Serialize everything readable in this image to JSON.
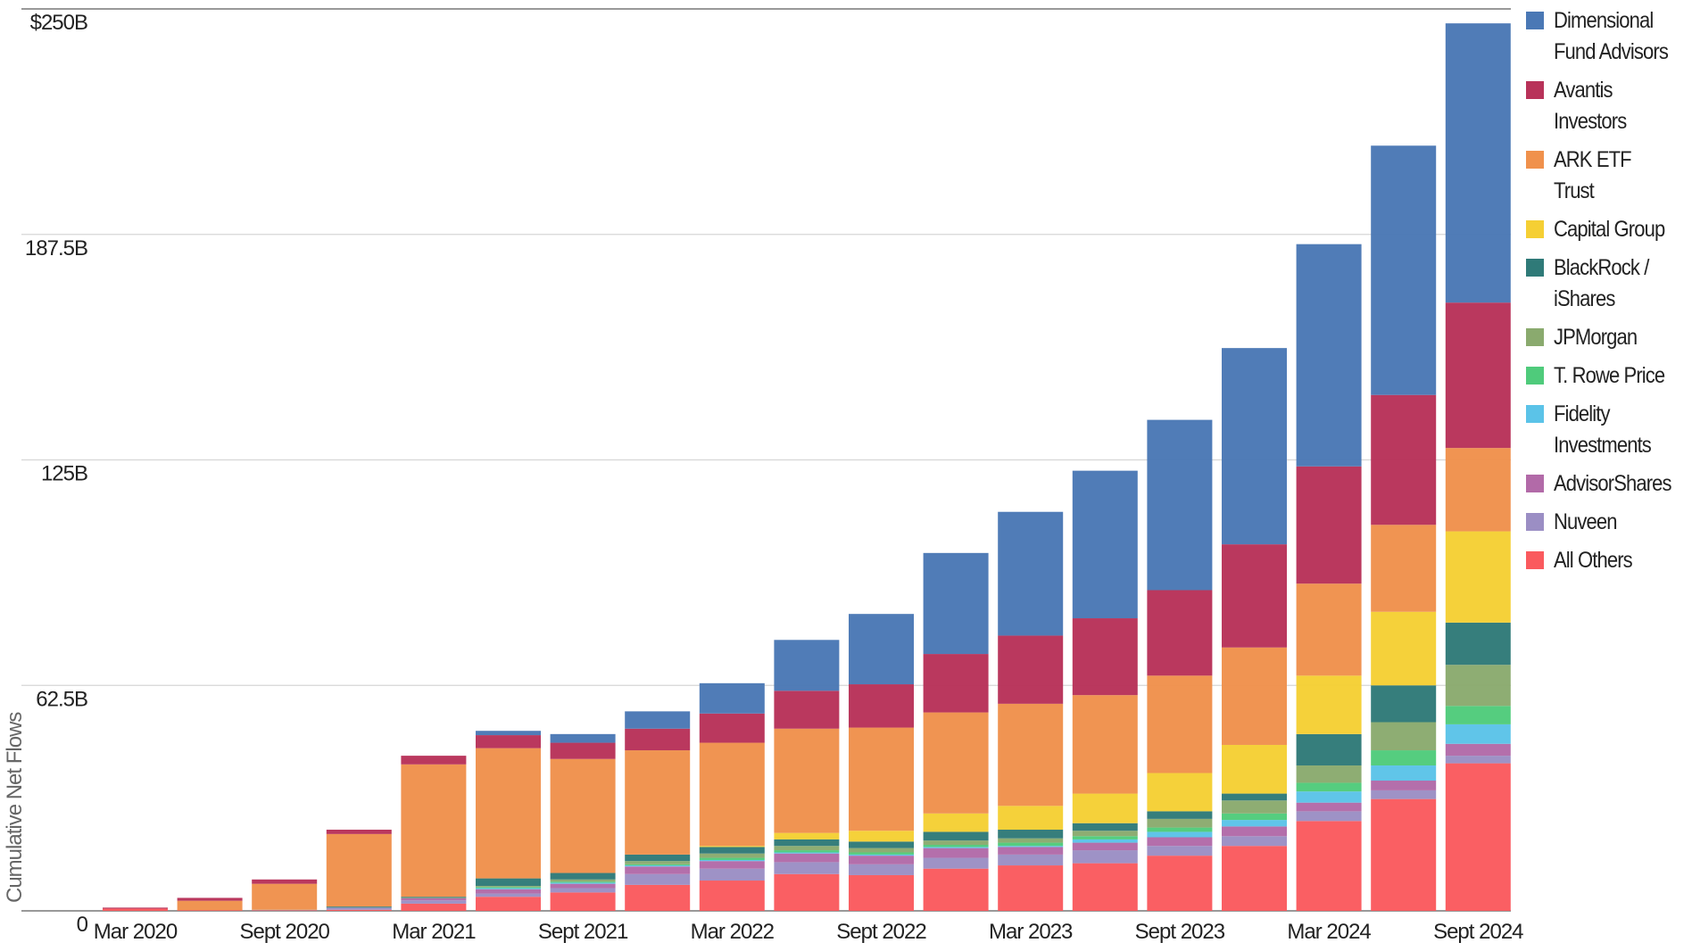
{
  "chart_data": {
    "type": "bar",
    "stacked": true,
    "title": "",
    "xlabel": "",
    "ylabel": "Cumulative Net Flows",
    "ylim": [
      0,
      250
    ],
    "yunit": "B",
    "yticks": [
      0,
      62.5,
      125,
      187.5,
      250
    ],
    "ytick_labels": [
      "0",
      "62.5B",
      "125B",
      "187.5B",
      "$250B"
    ],
    "grid": true,
    "legend_position": "right",
    "categories": [
      "Mar 2020",
      "Jun 2020",
      "Sept 2020",
      "Dec 2020",
      "Mar 2021",
      "Jun 2021",
      "Sept 2021",
      "Dec 2021",
      "Mar 2022",
      "Jun 2022",
      "Sept 2022",
      "Dec 2022",
      "Mar 2023",
      "Jun 2023",
      "Sept 2023",
      "Dec 2023",
      "Mar 2024",
      "Jun 2024",
      "Sept 2024"
    ],
    "xtick_labels": [
      "Mar 2020",
      "",
      "Sept 2020",
      "",
      "Mar 2021",
      "",
      "Sept 2021",
      "",
      "Mar 2022",
      "",
      "Sept 2022",
      "",
      "Mar 2023",
      "",
      "Sept 2023",
      "",
      "Mar 2024",
      "",
      "Sept 2024"
    ],
    "series": [
      {
        "name": "All Others",
        "color": "#fa5a5e",
        "values": [
          0.6,
          0.2,
          0.2,
          0.3,
          2.0,
          3.9,
          5.1,
          7.2,
          8.4,
          10.2,
          9.9,
          11.7,
          12.6,
          13.2,
          15.3,
          18.0,
          24.9,
          31.0,
          40.9
        ]
      },
      {
        "name": "Nuveen",
        "color": "#9b8ec4",
        "values": [
          0,
          0,
          0,
          0.6,
          0.9,
          0.9,
          1.2,
          3.0,
          3.3,
          3.3,
          3.0,
          3.0,
          3.0,
          3.6,
          2.7,
          2.7,
          2.7,
          2.4,
          2.1
        ]
      },
      {
        "name": "AdvisorShares",
        "color": "#b26aa8",
        "values": [
          0,
          0,
          0,
          0,
          0.6,
          1.2,
          1.2,
          2.1,
          2.1,
          2.4,
          2.4,
          2.7,
          2.1,
          2.1,
          2.4,
          2.7,
          2.4,
          2.7,
          3.3
        ]
      },
      {
        "name": "Fidelity Investments",
        "color": "#5bc3e8",
        "values": [
          0,
          0,
          0.1,
          0,
          0,
          0.3,
          0.3,
          0.3,
          0.3,
          0.3,
          0.3,
          0.3,
          0.3,
          0.9,
          1.5,
          1.8,
          3.1,
          4.2,
          5.4
        ]
      },
      {
        "name": "T. Rowe Price",
        "color": "#4fcb7b",
        "values": [
          0,
          0,
          0,
          0,
          0,
          0.3,
          0.3,
          0.3,
          0.6,
          0.6,
          0.6,
          0.6,
          0.9,
          0.9,
          1.2,
          1.8,
          2.4,
          4.2,
          5.1
        ]
      },
      {
        "name": "JPMorgan",
        "color": "#8aaa6e",
        "values": [
          0,
          0,
          0,
          0,
          0.1,
          0.3,
          0.6,
          0.9,
          1.2,
          1.2,
          1.2,
          1.2,
          1.2,
          1.5,
          2.4,
          3.6,
          4.8,
          7.8,
          11.4
        ]
      },
      {
        "name": "BlackRock / iShares",
        "color": "#2f7a78",
        "values": [
          0,
          0,
          0,
          0.3,
          0.3,
          2.1,
          1.8,
          1.8,
          1.8,
          1.8,
          1.8,
          2.4,
          2.4,
          2.1,
          2.1,
          1.9,
          8.7,
          10.2,
          11.7
        ]
      },
      {
        "name": "Capital Group",
        "color": "#f5cf34",
        "values": [
          0,
          0,
          0,
          0,
          0,
          0,
          0,
          0,
          0.3,
          1.8,
          3.0,
          5.1,
          6.6,
          8.2,
          10.6,
          13.5,
          16.2,
          20.4,
          25.3
        ]
      },
      {
        "name": "ARK ETF Trust",
        "color": "#f0914c",
        "values": [
          0,
          2.6,
          7.2,
          20.1,
          36.7,
          36.1,
          31.6,
          28.9,
          28.6,
          28.9,
          28.6,
          28.0,
          28.3,
          27.3,
          27.0,
          27.0,
          25.5,
          24.1,
          23.1
        ]
      },
      {
        "name": "Avantis Investors",
        "color": "#b83259",
        "values": [
          0.3,
          0.8,
          1.2,
          1.2,
          2.4,
          3.6,
          4.5,
          6.0,
          8.1,
          10.5,
          12.0,
          16.2,
          18.9,
          21.3,
          23.7,
          28.6,
          32.5,
          36.0,
          40.3
        ]
      },
      {
        "name": "Dimensional Fund Advisors",
        "color": "#4a78b5",
        "values": [
          0,
          0,
          0,
          0,
          0,
          1.2,
          2.4,
          4.8,
          8.4,
          14.1,
          19.5,
          28.0,
          34.3,
          40.9,
          47.2,
          54.4,
          61.6,
          69.1,
          77.4
        ]
      }
    ],
    "legend_order": [
      "Dimensional Fund Advisors",
      "Avantis Investors",
      "ARK ETF Trust",
      "Capital Group",
      "BlackRock / iShares",
      "JPMorgan",
      "T. Rowe Price",
      "Fidelity Investments",
      "AdvisorShares",
      "Nuveen",
      "All Others"
    ]
  }
}
